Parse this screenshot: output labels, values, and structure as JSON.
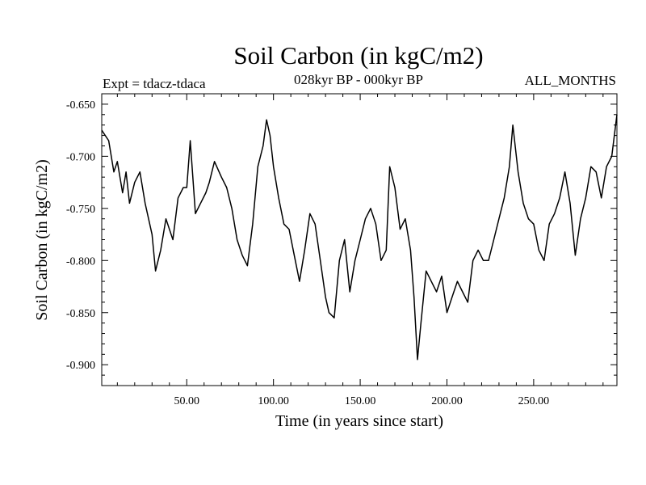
{
  "chart_data": {
    "type": "line",
    "title": "Soil Carbon (in kgC/m2)",
    "subtitle": "028kyr BP - 000kyr BP",
    "experiment_label": "Expt = tdacz-tdaca",
    "months_label": "ALL_MONTHS",
    "xlabel": "Time (in years since start)",
    "ylabel": "Soil Carbon (in kgC/m2)",
    "xlim": [
      1,
      298
    ],
    "ylim": [
      -0.92,
      -0.64
    ],
    "xticks": [
      50,
      100,
      150,
      200,
      250
    ],
    "xtick_labels": [
      "50.00",
      "100.00",
      "150.00",
      "200.00",
      "250.00"
    ],
    "yticks": [
      -0.65,
      -0.7,
      -0.75,
      -0.8,
      -0.85,
      -0.9
    ],
    "ytick_labels": [
      "-0.650",
      "-0.700",
      "-0.750",
      "-0.800",
      "-0.850",
      "-0.900"
    ],
    "grid": false,
    "series": [
      {
        "name": "Soil Carbon",
        "color": "#000000",
        "x": [
          1,
          5,
          8,
          10,
          13,
          15,
          17,
          20,
          23,
          26,
          30,
          32,
          35,
          38,
          42,
          45,
          48,
          50,
          52,
          55,
          58,
          61,
          63,
          66,
          70,
          73,
          76,
          79,
          82,
          85,
          88,
          91,
          94,
          96,
          98,
          100,
          103,
          106,
          109,
          112,
          115,
          118,
          121,
          124,
          127,
          130,
          132,
          135,
          138,
          141,
          144,
          147,
          150,
          153,
          156,
          159,
          162,
          165,
          167,
          170,
          173,
          176,
          179,
          181,
          183,
          185,
          188,
          191,
          194,
          197,
          200,
          203,
          206,
          209,
          212,
          215,
          218,
          221,
          224,
          227,
          230,
          233,
          236,
          238,
          241,
          244,
          247,
          250,
          253,
          256,
          259,
          262,
          265,
          268,
          271,
          274,
          277,
          280,
          283,
          286,
          289,
          292,
          295,
          298
        ],
        "values": [
          -0.675,
          -0.685,
          -0.715,
          -0.705,
          -0.735,
          -0.715,
          -0.745,
          -0.725,
          -0.715,
          -0.745,
          -0.775,
          -0.81,
          -0.79,
          -0.76,
          -0.78,
          -0.74,
          -0.73,
          -0.73,
          -0.685,
          -0.755,
          -0.745,
          -0.735,
          -0.725,
          -0.705,
          -0.72,
          -0.73,
          -0.75,
          -0.78,
          -0.795,
          -0.805,
          -0.765,
          -0.71,
          -0.69,
          -0.665,
          -0.68,
          -0.71,
          -0.74,
          -0.765,
          -0.77,
          -0.795,
          -0.82,
          -0.79,
          -0.755,
          -0.765,
          -0.8,
          -0.835,
          -0.85,
          -0.855,
          -0.8,
          -0.78,
          -0.83,
          -0.8,
          -0.78,
          -0.76,
          -0.75,
          -0.765,
          -0.8,
          -0.79,
          -0.71,
          -0.73,
          -0.77,
          -0.76,
          -0.79,
          -0.835,
          -0.895,
          -0.86,
          -0.81,
          -0.82,
          -0.83,
          -0.815,
          -0.85,
          -0.835,
          -0.82,
          -0.83,
          -0.84,
          -0.8,
          -0.79,
          -0.8,
          -0.8,
          -0.78,
          -0.76,
          -0.74,
          -0.71,
          -0.67,
          -0.715,
          -0.745,
          -0.76,
          -0.765,
          -0.79,
          -0.8,
          -0.765,
          -0.755,
          -0.74,
          -0.715,
          -0.745,
          -0.795,
          -0.76,
          -0.74,
          -0.71,
          -0.715,
          -0.74,
          -0.71,
          -0.7,
          -0.66
        ]
      }
    ]
  }
}
